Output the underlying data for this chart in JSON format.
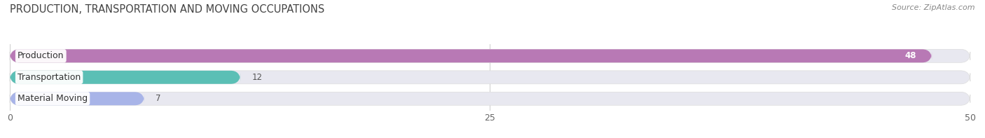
{
  "title": "PRODUCTION, TRANSPORTATION AND MOVING OCCUPATIONS",
  "source": "Source: ZipAtlas.com",
  "categories": [
    "Production",
    "Transportation",
    "Material Moving"
  ],
  "values": [
    48,
    12,
    7
  ],
  "bar_colors": [
    "#b879b5",
    "#5bbfb5",
    "#a8b4e8"
  ],
  "bar_bg_color": "#e8e8f0",
  "xlim": [
    0,
    50
  ],
  "xticks": [
    0,
    25,
    50
  ],
  "title_fontsize": 10.5,
  "label_fontsize": 9,
  "value_fontsize": 8.5,
  "source_fontsize": 8,
  "background_color": "#ffffff",
  "bar_height": 0.62,
  "bar_gap": 1.0
}
